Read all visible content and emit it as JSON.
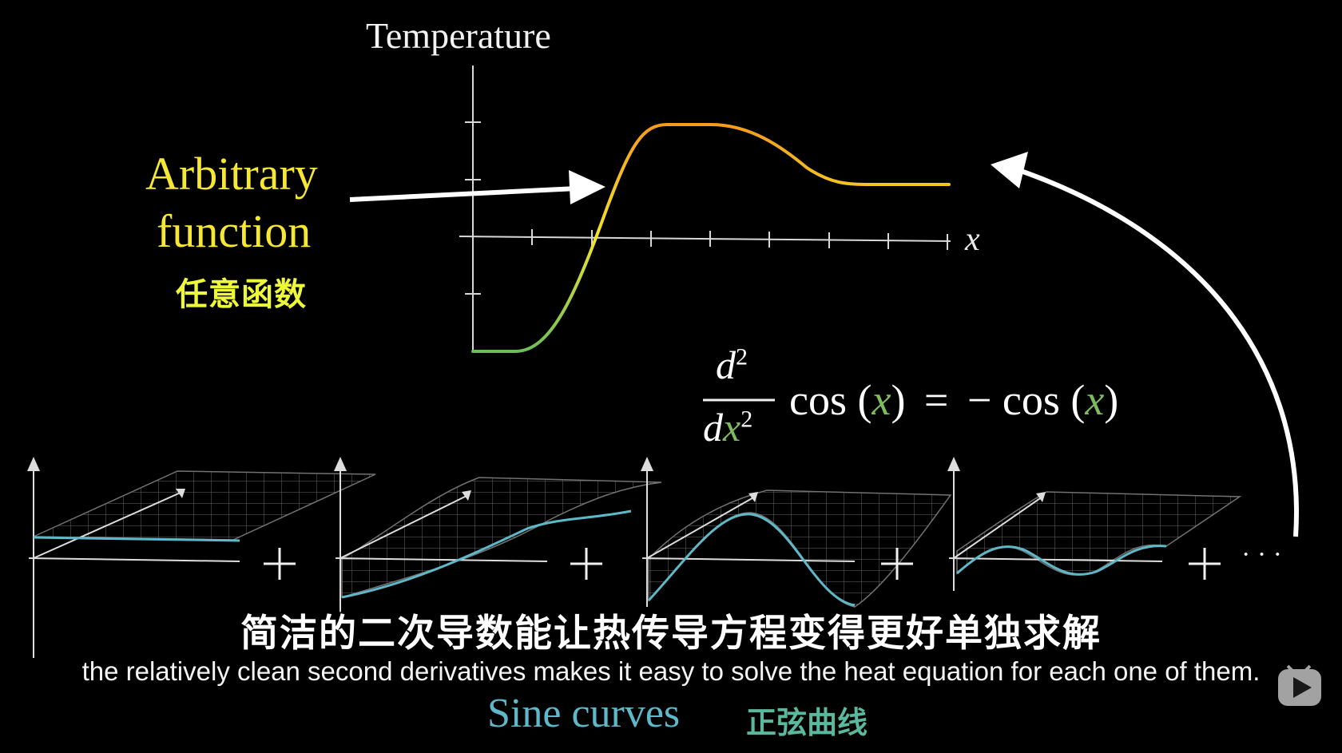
{
  "graph": {
    "y_axis_title": "Temperature",
    "x_axis_label": "x"
  },
  "annotation": {
    "line1": "Arbitrary",
    "line2": "function",
    "chinese": "任意函数"
  },
  "equation": {
    "numerator_d": "d",
    "numerator_exp": "2",
    "denominator_d": "d",
    "denominator_x": "x",
    "denominator_exp": "2",
    "lhs_func": "cos",
    "equals": "=",
    "rhs_minus": "−",
    "rhs_func": "cos",
    "var": "x",
    "open_paren": "(",
    "close_paren": ")"
  },
  "series": {
    "plus_signs": [
      "+",
      "+",
      "+",
      "+"
    ],
    "ellipsis": "· · ·",
    "label": "Sine curves",
    "label_chinese": "正弦曲线"
  },
  "subtitles": {
    "chinese": "简洁的二次导数能让热传导方程变得更好单独求解",
    "english": "the relatively clean second derivatives makes it easy to solve the heat equation for each one of them."
  },
  "colors": {
    "annotation": "#f5e733",
    "curve_low": "#6dbd5a",
    "curve_mid": "#f2e52e",
    "curve_high": "#f59b1c",
    "sine": "#5fb8c9",
    "var_green": "#7dbb5f",
    "background": "#000000"
  },
  "icons": [
    "arrow-right-icon",
    "curved-arrow-icon",
    "bilibili-tv-icon"
  ]
}
